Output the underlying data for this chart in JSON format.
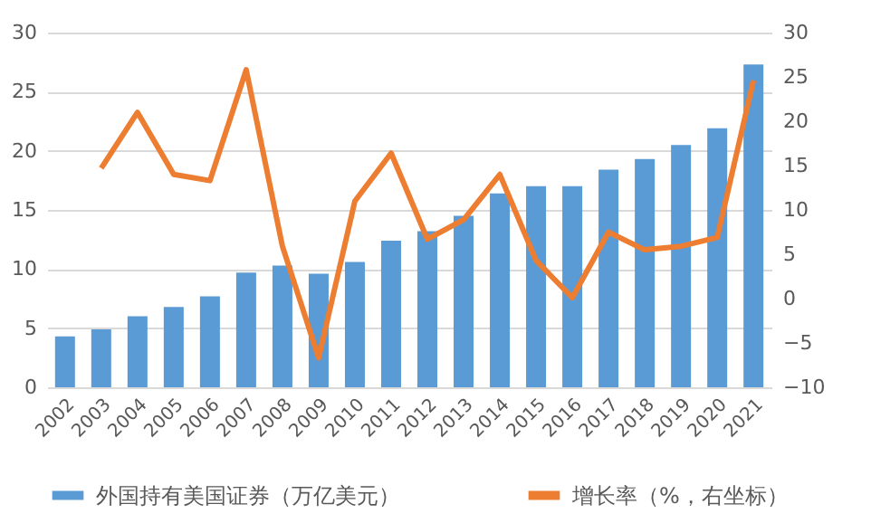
{
  "chart_data": {
    "type": "bar",
    "categories": [
      "2002",
      "2003",
      "2004",
      "2005",
      "2006",
      "2007",
      "2008",
      "2009",
      "2010",
      "2011",
      "2012",
      "2013",
      "2014",
      "2015",
      "2016",
      "2017",
      "2018",
      "2019",
      "2020",
      "2021"
    ],
    "series": [
      {
        "name": "外国持有美国证券（万亿美元）",
        "color": "#5b9bd5",
        "values": [
          4.3,
          4.9,
          6.0,
          6.8,
          7.7,
          9.7,
          10.3,
          9.6,
          10.6,
          12.4,
          13.2,
          14.5,
          16.4,
          17.0,
          17.0,
          18.4,
          19.3,
          20.5,
          21.9,
          27.3
        ]
      },
      {
        "name": "增长率（%，右坐标）",
        "color": "#ed7d31",
        "type": "line",
        "axis": "y2",
        "values": [
          null,
          14.7,
          21.0,
          14.0,
          13.3,
          25.8,
          5.9,
          -6.7,
          11.0,
          16.4,
          6.7,
          8.9,
          14.0,
          4.3,
          0.1,
          7.5,
          5.5,
          5.9,
          6.9,
          24.6
        ]
      }
    ],
    "ylim": [
      0,
      30
    ],
    "yticks": [
      0,
      5,
      10,
      15,
      20,
      25,
      30
    ],
    "y2lim": [
      -10,
      30
    ],
    "y2ticks": [
      -10,
      -5,
      0,
      5,
      10,
      15,
      20,
      25,
      30
    ],
    "grid": "y",
    "legend": "bottom"
  }
}
